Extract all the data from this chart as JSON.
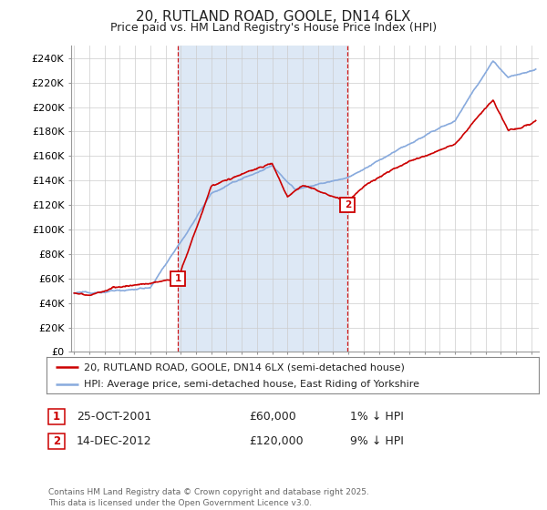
{
  "title": "20, RUTLAND ROAD, GOOLE, DN14 6LX",
  "subtitle": "Price paid vs. HM Land Registry's House Price Index (HPI)",
  "ylim": [
    0,
    250000
  ],
  "yticks": [
    0,
    20000,
    40000,
    60000,
    80000,
    100000,
    120000,
    140000,
    160000,
    180000,
    200000,
    220000,
    240000
  ],
  "ytick_labels": [
    "£0",
    "£20K",
    "£40K",
    "£60K",
    "£80K",
    "£100K",
    "£120K",
    "£140K",
    "£160K",
    "£180K",
    "£200K",
    "£220K",
    "£240K"
  ],
  "house_color": "#cc0000",
  "hpi_color": "#88aadd",
  "vline_color": "#cc0000",
  "shade_color": "#dde8f5",
  "bg_color": "#ffffff",
  "grid_color": "#cccccc",
  "legend_label_house": "20, RUTLAND ROAD, GOOLE, DN14 6LX (semi-detached house)",
  "legend_label_hpi": "HPI: Average price, semi-detached house, East Riding of Yorkshire",
  "annotation1_label": "1",
  "annotation1_date": "25-OCT-2001",
  "annotation1_price": "£60,000",
  "annotation1_pct": "1% ↓ HPI",
  "annotation2_label": "2",
  "annotation2_date": "14-DEC-2012",
  "annotation2_price": "£120,000",
  "annotation2_pct": "9% ↓ HPI",
  "copyright_text": "Contains HM Land Registry data © Crown copyright and database right 2025.\nThis data is licensed under the Open Government Licence v3.0.",
  "sale1_x": 2001.82,
  "sale1_y": 60000,
  "sale2_x": 2012.96,
  "sale2_y": 120000,
  "xlim_left": 1994.8,
  "xlim_right": 2025.5
}
